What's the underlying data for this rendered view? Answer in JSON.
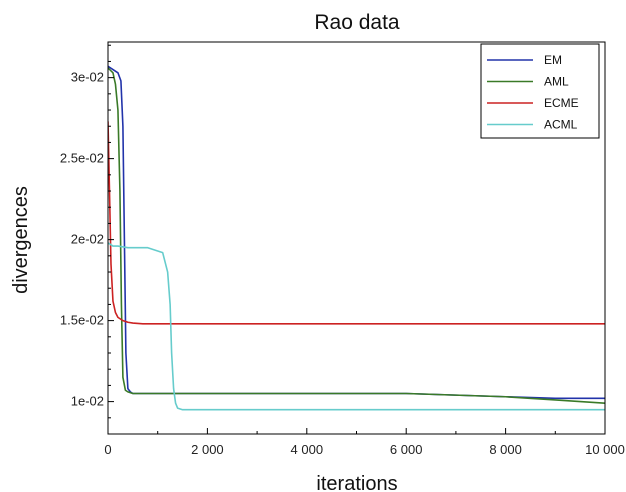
{
  "chart_data": {
    "type": "line",
    "title": "Rao data",
    "xlabel": "iterations",
    "ylabel": "divergences",
    "xlim": [
      0,
      10000
    ],
    "ylim": [
      0.008,
      0.0322
    ],
    "xticks": [
      0,
      2000,
      4000,
      6000,
      8000,
      10000
    ],
    "xtick_labels": [
      "0",
      "2 000",
      "4 000",
      "6 000",
      "8 000",
      "10 000"
    ],
    "yticks": [
      0.01,
      0.015,
      0.02,
      0.025,
      0.03
    ],
    "ytick_labels": [
      "1e-02",
      "1.5e-02",
      "2e-02",
      "2.5e-02",
      "3e-02"
    ],
    "grid": false,
    "legend_position": "top-right",
    "series": [
      {
        "name": "EM",
        "color": "#2233aa",
        "x": [
          0,
          100,
          200,
          260,
          300,
          330,
          360,
          400,
          450,
          500,
          1000,
          2000,
          4000,
          6000,
          8000,
          9000,
          10000
        ],
        "y": [
          0.0307,
          0.0305,
          0.0303,
          0.0298,
          0.027,
          0.02,
          0.013,
          0.0108,
          0.0106,
          0.0105,
          0.0105,
          0.0105,
          0.0105,
          0.0105,
          0.0103,
          0.0102,
          0.0102
        ]
      },
      {
        "name": "AML",
        "color": "#3a7a28",
        "x": [
          0,
          100,
          150,
          200,
          240,
          270,
          300,
          350,
          400,
          500,
          1000,
          2000,
          4000,
          6000,
          8000,
          9000,
          10000
        ],
        "y": [
          0.0306,
          0.0303,
          0.0296,
          0.028,
          0.023,
          0.016,
          0.0115,
          0.0107,
          0.0106,
          0.0105,
          0.0105,
          0.0105,
          0.0105,
          0.0105,
          0.0103,
          0.0101,
          0.0099
        ]
      },
      {
        "name": "ECME",
        "color": "#cc2222",
        "x": [
          0,
          30,
          60,
          100,
          150,
          200,
          300,
          400,
          500,
          700,
          1000,
          2000,
          4000,
          6000,
          8000,
          10000
        ],
        "y": [
          0.0273,
          0.023,
          0.0185,
          0.0162,
          0.0155,
          0.0152,
          0.015,
          0.0149,
          0.01485,
          0.0148,
          0.0148,
          0.0148,
          0.0148,
          0.0148,
          0.0148,
          0.0148
        ]
      },
      {
        "name": "ACML",
        "color": "#66cccc",
        "x": [
          0,
          50,
          100,
          200,
          400,
          800,
          1100,
          1200,
          1250,
          1280,
          1320,
          1360,
          1400,
          1500,
          2000,
          4000,
          6000,
          8000,
          10000
        ],
        "y": [
          0.0198,
          0.0197,
          0.0196,
          0.0196,
          0.0195,
          0.0195,
          0.0192,
          0.018,
          0.016,
          0.013,
          0.0108,
          0.0099,
          0.0096,
          0.0095,
          0.0095,
          0.0095,
          0.0095,
          0.0095,
          0.0095
        ]
      }
    ]
  }
}
